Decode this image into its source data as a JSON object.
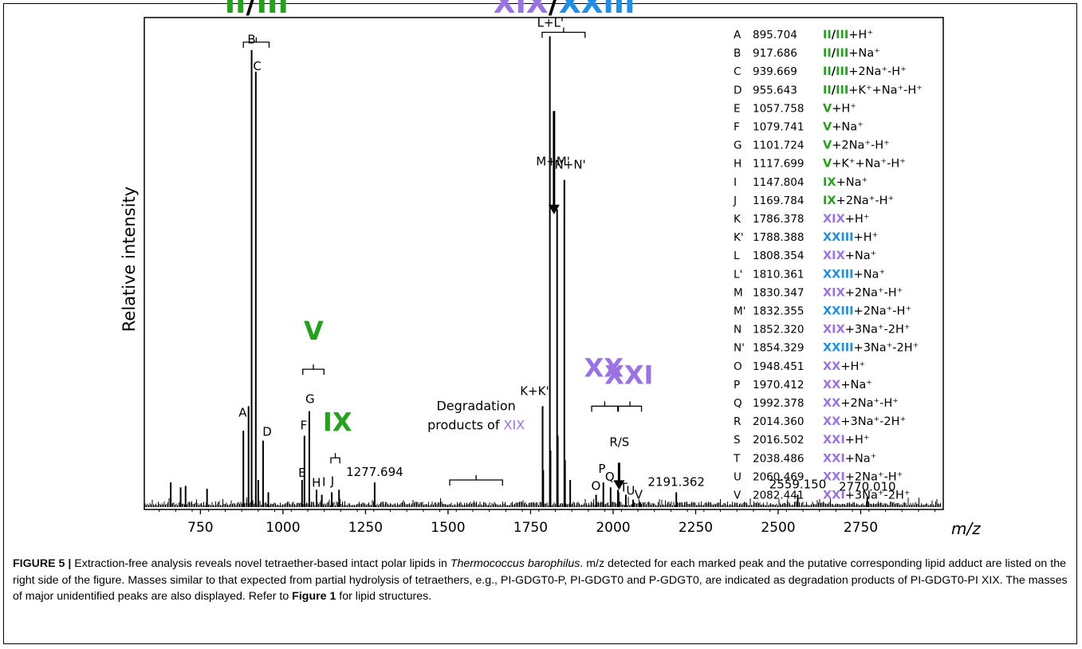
{
  "chart_data": {
    "type": "line",
    "xlabel": "m/z",
    "ylabel": "Relative intensity",
    "xlim": [
      580,
      3000
    ],
    "ylim": [
      0,
      100
    ],
    "x_ticks": [
      "750",
      "1000",
      "1250",
      "1500",
      "1750",
      "2000",
      "2250",
      "2500",
      "2750"
    ],
    "x_tick_values": [
      750,
      1000,
      1250,
      1500,
      1750,
      2000,
      2250,
      2500,
      2750
    ],
    "grid": false,
    "legend": "top-right",
    "colors": {
      "green": "#22a31a",
      "purple": "#9b72e6",
      "blue": "#1c8fe8",
      "axis": "#000000"
    },
    "peaks": [
      {
        "x": 660,
        "y": 5.5
      },
      {
        "x": 690,
        "y": 4.5
      },
      {
        "x": 705,
        "y": 4.8
      },
      {
        "x": 770,
        "y": 4.2
      },
      {
        "x": 880,
        "y": 16
      },
      {
        "x": 895.7,
        "y": 21
      },
      {
        "x": 905,
        "y": 93.4
      },
      {
        "x": 917.7,
        "y": 89
      },
      {
        "x": 925,
        "y": 6
      },
      {
        "x": 939.7,
        "y": 14
      },
      {
        "x": 955.6,
        "y": 3.5
      },
      {
        "x": 1057.8,
        "y": 6
      },
      {
        "x": 1065,
        "y": 15
      },
      {
        "x": 1079.7,
        "y": 20
      },
      {
        "x": 1101.7,
        "y": 4
      },
      {
        "x": 1117.7,
        "y": 3
      },
      {
        "x": 1147.8,
        "y": 3.5
      },
      {
        "x": 1169.8,
        "y": 4
      },
      {
        "x": 1277.7,
        "y": 5.5
      },
      {
        "x": 1786.4,
        "y": 21
      },
      {
        "x": 1788.4,
        "y": 8
      },
      {
        "x": 1808.4,
        "y": 96.2
      },
      {
        "x": 1810.4,
        "y": 12
      },
      {
        "x": 1830.3,
        "y": 61
      },
      {
        "x": 1832.4,
        "y": 15
      },
      {
        "x": 1852.3,
        "y": 67
      },
      {
        "x": 1854.3,
        "y": 10
      },
      {
        "x": 1870,
        "y": 6
      },
      {
        "x": 1948.5,
        "y": 3
      },
      {
        "x": 1970.4,
        "y": 5.5
      },
      {
        "x": 1992.4,
        "y": 4.5
      },
      {
        "x": 2014.4,
        "y": 4
      },
      {
        "x": 2016.5,
        "y": 3.5
      },
      {
        "x": 2038.5,
        "y": 3
      },
      {
        "x": 2060.5,
        "y": 2
      },
      {
        "x": 2082.4,
        "y": 1.5
      },
      {
        "x": 2191.4,
        "y": 3.5
      },
      {
        "x": 2559.2,
        "y": 3
      },
      {
        "x": 2770.0,
        "y": 2.5
      }
    ],
    "peak_labels": [
      {
        "text": "A",
        "x": 878,
        "y": 16,
        "dy": -18
      },
      {
        "text": "B",
        "x": 905,
        "y": 93.4,
        "dy": -8
      },
      {
        "text": "C",
        "x": 922,
        "y": 89,
        "dy": -2
      },
      {
        "text": "D",
        "x": 952,
        "y": 14,
        "dy": -6
      },
      {
        "text": "E",
        "x": 1058,
        "y": 6,
        "dy": -4
      },
      {
        "text": "F",
        "x": 1063,
        "y": 15,
        "dy": -8
      },
      {
        "text": "G",
        "x": 1082,
        "y": 20,
        "dy": -10
      },
      {
        "text": "H",
        "x": 1101,
        "y": 4,
        "dy": -4
      },
      {
        "text": "I",
        "x": 1124,
        "y": 4,
        "dy": -5
      },
      {
        "text": "J",
        "x": 1150,
        "y": 4,
        "dy": -6
      },
      {
        "text": "1277.694",
        "x": 1277.7,
        "y": 5.5,
        "dy": -8
      },
      {
        "text": "K+K'",
        "x": 1762,
        "y": 21,
        "dy": -14
      },
      {
        "text": "L+L'",
        "x": 1810,
        "y": 96.2,
        "dy": -12
      },
      {
        "text": "M+M'",
        "x": 1818,
        "y": 61,
        "dy": -55
      },
      {
        "text": "N+N'",
        "x": 1870,
        "y": 67,
        "dy": -14
      },
      {
        "text": "O",
        "x": 1948,
        "y": 3,
        "dy": -6
      },
      {
        "text": "P",
        "x": 1966,
        "y": 5.5,
        "dy": -12
      },
      {
        "text": "Q",
        "x": 1990,
        "y": 4.5,
        "dy": -8
      },
      {
        "text": "R/S",
        "x": 2019,
        "y": 4,
        "dy": -55
      },
      {
        "text": "T",
        "x": 2032,
        "y": 3,
        "dy": -4
      },
      {
        "text": "U",
        "x": 2053,
        "y": 2,
        "dy": -6
      },
      {
        "text": "V",
        "x": 2077,
        "y": 1.5,
        "dy": -4
      },
      {
        "text": "2191.362",
        "x": 2191.4,
        "y": 3.5,
        "dy": -8
      },
      {
        "text": "2559.150",
        "x": 2559.2,
        "y": 3,
        "dy": -8
      },
      {
        "text": "2770.010",
        "x": 2770,
        "y": 2.5,
        "dy": -8
      }
    ],
    "arrows": [
      {
        "name": "arrow-m",
        "x": 1821,
        "y_from": 81,
        "y_to": 60
      },
      {
        "name": "arrow-rs",
        "x": 2018,
        "y_from": 9.5,
        "y_to": 4
      }
    ],
    "brackets": [
      {
        "name": "bracket-ii-iii",
        "x1": 880,
        "x2": 958,
        "y": 95
      },
      {
        "name": "bracket-xix-xxiii",
        "x1": 1785,
        "x2": 1915,
        "y": 97
      },
      {
        "name": "bracket-v",
        "x1": 1060,
        "x2": 1124,
        "y": 28.5
      },
      {
        "name": "bracket-ix",
        "x1": 1145,
        "x2": 1172,
        "y": 10.5
      },
      {
        "name": "bracket-degradation",
        "x1": 1505,
        "x2": 1665,
        "y": 6
      },
      {
        "name": "bracket-xx",
        "x1": 1935,
        "x2": 2014,
        "y": 21
      },
      {
        "name": "bracket-xxi",
        "x1": 2016,
        "x2": 2086,
        "y": 21
      }
    ],
    "group_labels": [
      {
        "name": "group-label-ii-iii",
        "parts": [
          {
            "t": "II",
            "c": "green"
          },
          {
            "t": "/",
            "c": "black"
          },
          {
            "t": "III",
            "c": "green"
          }
        ],
        "x": 920,
        "y": 101,
        "size": 36
      },
      {
        "name": "group-label-xix-xxiii",
        "parts": [
          {
            "t": "XIX",
            "c": "purple"
          },
          {
            "t": "/",
            "c": "black"
          },
          {
            "t": "XXIII",
            "c": "blue"
          }
        ],
        "x": 1852,
        "y": 101,
        "size": 36
      },
      {
        "name": "group-label-v",
        "parts": [
          {
            "t": "V",
            "c": "green"
          }
        ],
        "x": 1093,
        "y": 34.5,
        "size": 32
      },
      {
        "name": "group-label-ix",
        "parts": [
          {
            "t": "IX",
            "c": "green"
          }
        ],
        "x": 1165,
        "y": 16,
        "size": 32
      },
      {
        "name": "group-label-xx",
        "parts": [
          {
            "t": "XX",
            "c": "purple"
          }
        ],
        "x": 1972,
        "y": 27,
        "size": 32
      },
      {
        "name": "group-label-xxi",
        "parts": [
          {
            "t": "XXI",
            "c": "purple"
          }
        ],
        "x": 2048,
        "y": 25.5,
        "size": 32
      }
    ],
    "degradation_label": {
      "line1": "Degradation",
      "line2": "products of",
      "tag": "XIX",
      "x": 1585,
      "y": 16
    },
    "legend_entries": [
      {
        "key": "A",
        "mass": "895.704",
        "parts": [
          {
            "t": "II",
            "c": "green"
          },
          {
            "t": "/",
            "c": "black"
          },
          {
            "t": "III",
            "c": "green"
          }
        ],
        "adduct": "+H⁺"
      },
      {
        "key": "B",
        "mass": "917.686",
        "parts": [
          {
            "t": "II",
            "c": "green"
          },
          {
            "t": "/",
            "c": "black"
          },
          {
            "t": "III",
            "c": "green"
          }
        ],
        "adduct": "+Na⁺"
      },
      {
        "key": "C",
        "mass": "939.669",
        "parts": [
          {
            "t": "II",
            "c": "green"
          },
          {
            "t": "/",
            "c": "black"
          },
          {
            "t": "III",
            "c": "green"
          }
        ],
        "adduct": "+2Na⁺-H⁺"
      },
      {
        "key": "D",
        "mass": "955.643",
        "parts": [
          {
            "t": "II",
            "c": "green"
          },
          {
            "t": "/",
            "c": "black"
          },
          {
            "t": "III",
            "c": "green"
          }
        ],
        "adduct": "+K⁺+Na⁺-H⁺"
      },
      {
        "key": "E",
        "mass": "1057.758",
        "parts": [
          {
            "t": "V",
            "c": "green"
          }
        ],
        "adduct": "+H⁺"
      },
      {
        "key": "F",
        "mass": "1079.741",
        "parts": [
          {
            "t": "V",
            "c": "green"
          }
        ],
        "adduct": "+Na⁺"
      },
      {
        "key": "G",
        "mass": "1101.724",
        "parts": [
          {
            "t": "V",
            "c": "green"
          }
        ],
        "adduct": "+2Na⁺-H⁺"
      },
      {
        "key": "H",
        "mass": "1117.699",
        "parts": [
          {
            "t": "V",
            "c": "green"
          }
        ],
        "adduct": "+K⁺+Na⁺-H⁺"
      },
      {
        "key": "I",
        "mass": "1147.804",
        "parts": [
          {
            "t": "IX",
            "c": "green"
          }
        ],
        "adduct": "+Na⁺"
      },
      {
        "key": "J",
        "mass": "1169.784",
        "parts": [
          {
            "t": "IX",
            "c": "green"
          }
        ],
        "adduct": "+2Na⁺-H⁺"
      },
      {
        "key": "K",
        "mass": "1786.378",
        "parts": [
          {
            "t": "XIX",
            "c": "purple"
          }
        ],
        "adduct": "+H⁺"
      },
      {
        "key": "K'",
        "mass": "1788.388",
        "parts": [
          {
            "t": "XXIII",
            "c": "blue"
          }
        ],
        "adduct": "+H⁺"
      },
      {
        "key": "L",
        "mass": "1808.354",
        "parts": [
          {
            "t": "XIX",
            "c": "purple"
          }
        ],
        "adduct": "+Na⁺"
      },
      {
        "key": "L'",
        "mass": "1810.361",
        "parts": [
          {
            "t": "XXIII",
            "c": "blue"
          }
        ],
        "adduct": "+Na⁺"
      },
      {
        "key": "M",
        "mass": "1830.347",
        "parts": [
          {
            "t": "XIX",
            "c": "purple"
          }
        ],
        "adduct": "+2Na⁺-H⁺"
      },
      {
        "key": "M'",
        "mass": "1832.355",
        "parts": [
          {
            "t": "XXIII",
            "c": "blue"
          }
        ],
        "adduct": "+2Na⁺-H⁺"
      },
      {
        "key": "N",
        "mass": "1852.320",
        "parts": [
          {
            "t": "XIX",
            "c": "purple"
          }
        ],
        "adduct": "+3Na⁺-2H⁺"
      },
      {
        "key": "N'",
        "mass": "1854.329",
        "parts": [
          {
            "t": "XXIII",
            "c": "blue"
          }
        ],
        "adduct": "+3Na⁺-2H⁺"
      },
      {
        "key": "O",
        "mass": "1948.451",
        "parts": [
          {
            "t": "XX",
            "c": "purple"
          }
        ],
        "adduct": "+H⁺"
      },
      {
        "key": "P",
        "mass": "1970.412",
        "parts": [
          {
            "t": "XX",
            "c": "purple"
          }
        ],
        "adduct": "+Na⁺"
      },
      {
        "key": "Q",
        "mass": "1992.378",
        "parts": [
          {
            "t": "XX",
            "c": "purple"
          }
        ],
        "adduct": "+2Na⁺-H⁺"
      },
      {
        "key": "R",
        "mass": "2014.360",
        "parts": [
          {
            "t": "XX",
            "c": "purple"
          }
        ],
        "adduct": "+3Na⁺-2H⁺"
      },
      {
        "key": "S",
        "mass": "2016.502",
        "parts": [
          {
            "t": "XXI",
            "c": "purple"
          }
        ],
        "adduct": "+H⁺"
      },
      {
        "key": "T",
        "mass": "2038.486",
        "parts": [
          {
            "t": "XXI",
            "c": "purple"
          }
        ],
        "adduct": "+Na⁺"
      },
      {
        "key": "U",
        "mass": "2060.469",
        "parts": [
          {
            "t": "XXI",
            "c": "purple"
          }
        ],
        "adduct": "+2Na⁺-H⁺"
      },
      {
        "key": "V",
        "mass": "2082.441",
        "parts": [
          {
            "t": "XXI",
            "c": "purple"
          }
        ],
        "adduct": "+3Na⁺-2H⁺"
      }
    ]
  },
  "caption": {
    "label": "FIGURE 5 |",
    "text_1": " Extraction-free analysis reveals novel tetraether-based intact polar lipids in ",
    "species": "Thermococcus barophilus",
    "text_2": ". m/z detected for each marked peak and the putative corresponding lipid adduct are listed on the right side of the figure. Masses similar to that expected from partial hydrolysis of tetraethers, e.g., PI-GDGT0-P, PI-GDGT0 and P-GDGT0, are indicated as degradation products of PI-GDGT0-PI XIX. The masses of major unidentified peaks are also displayed. Refer to ",
    "figure_ref": "Figure 1",
    "text_3": " for lipid structures."
  }
}
